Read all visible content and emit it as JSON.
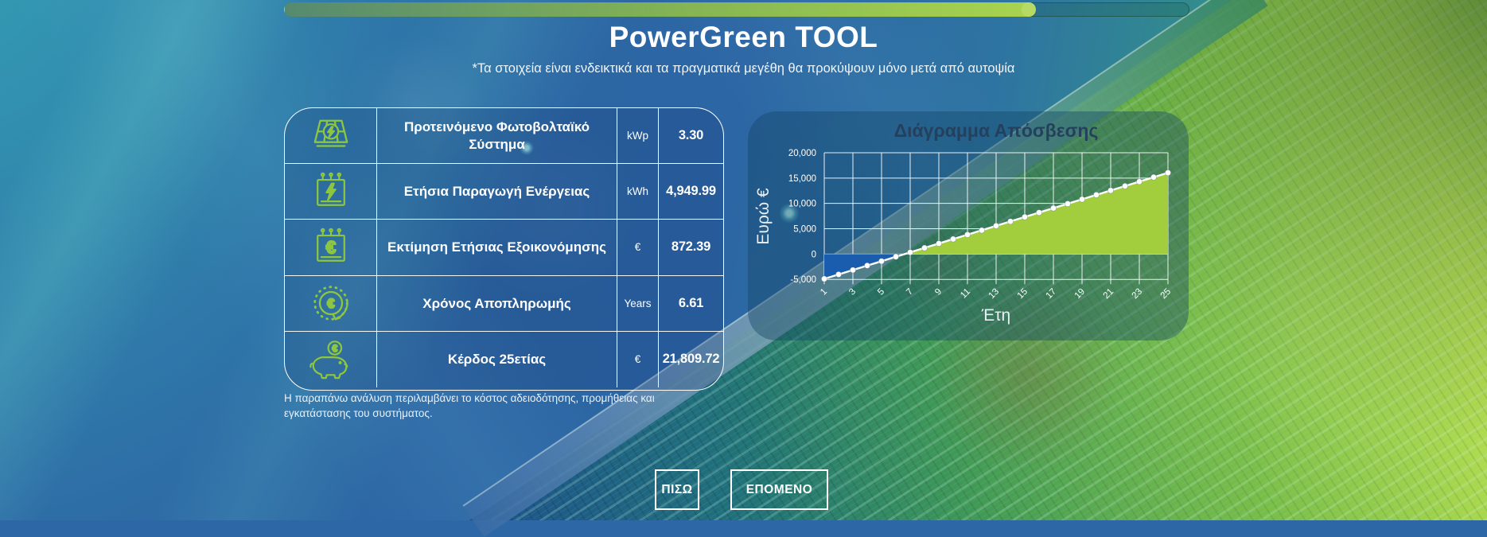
{
  "progress": {
    "percent": 83
  },
  "header": {
    "title": "PowerGreen TOOL",
    "subtitle": "*Τα στοιχεία είναι ενδεικτικά και τα πραγματικά μεγέθη θα προκύψουν μόνο μετά από αυτοψία"
  },
  "table": {
    "rows": [
      {
        "icon": "solar-panel-icon",
        "label": "Προτεινόμενο Φωτοβολταϊκό Σύστημα",
        "unit": "kWp",
        "value": "3.30"
      },
      {
        "icon": "calendar-energy-icon",
        "label": "Ετήσια Παραγωγή Ενέργειας",
        "unit": "kWh",
        "value": "4,949.99"
      },
      {
        "icon": "calendar-euro-icon",
        "label": "Εκτίμηση Ετήσιας Εξοικονόμησης",
        "unit": "€",
        "value": "872.39"
      },
      {
        "icon": "payback-clock-icon",
        "label": "Χρόνος Αποπληρωμής",
        "unit": "Years",
        "value": "6.61"
      },
      {
        "icon": "piggy-bank-icon",
        "label": "Κέρδος 25ετίας",
        "unit": "€",
        "value": "21,809.72"
      }
    ],
    "footnote": "Η παραπάνω ανάλυση περιλαμβάνει το κόστος αδειοδότησης, προμήθειας και εγκατάστασης του συστήματος."
  },
  "chart_data": {
    "type": "area",
    "title": "Διάγραμμα Απόσβεσης",
    "xlabel": "Έτη",
    "ylabel": "Ευρώ €",
    "x": [
      1,
      2,
      3,
      4,
      5,
      6,
      7,
      8,
      9,
      10,
      11,
      12,
      13,
      14,
      15,
      16,
      17,
      18,
      19,
      20,
      21,
      22,
      23,
      24,
      25
    ],
    "values": [
      -4894,
      -4022,
      -3149,
      -2277,
      -1405,
      -532,
      340,
      1213,
      2085,
      2957,
      3830,
      4702,
      5575,
      6447,
      7319,
      8192,
      9064,
      9937,
      10809,
      11681,
      12554,
      13426,
      14298,
      15171,
      16043
    ],
    "x_ticks": [
      1,
      3,
      5,
      7,
      9,
      11,
      13,
      15,
      17,
      19,
      21,
      23,
      25
    ],
    "y_tick_values": [
      20000,
      15000,
      10000,
      5000,
      0,
      -5000
    ],
    "y_tick_labels": [
      "20,000",
      "15,000",
      "10,000",
      "5,000",
      "0",
      "-5,000"
    ],
    "ylim": [
      -5000,
      20000
    ],
    "grid": true,
    "legend": "none",
    "zero_crossing_year": 6.61
  },
  "buttons": {
    "back": "ΠΙΣΩ",
    "next": "ΕΠΟΜΕΝΟ"
  },
  "colors": {
    "brand_green": "#8dc63f",
    "area_negative": "#1a5cad",
    "area_positive": "#a2ce3e",
    "chart_line": "#ffffff",
    "chart_title": "#24405c",
    "progress_from": "#568a70",
    "progress_mid": "#86b653",
    "progress_to": "#a9d44f",
    "progress_cap": "#b7da64"
  }
}
